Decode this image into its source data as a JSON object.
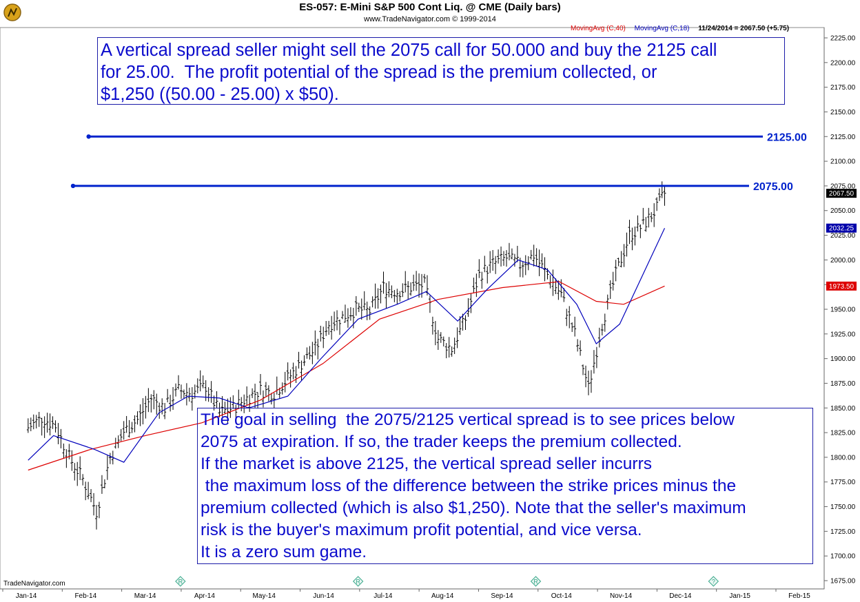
{
  "header": {
    "title": "ES-057:  E-Mini S&P 500 Cont Liq. @ CME  (Daily bars)",
    "subtitle": "www.TradeNavigator.com © 1999-2014",
    "legend": [
      {
        "label": "MovingAvg (C,40)",
        "color": "#dd0000"
      },
      {
        "label": "MovingAvg (C,18)",
        "color": "#0000bb"
      },
      {
        "label": "11/24/2014 = 2067.50 (+5.75)",
        "color": "#000000"
      }
    ]
  },
  "annotations": {
    "top": [
      "A vertical spread seller might sell the 2075 call for 50.000 and buy the 2125 call",
      "for 25.00.  The profit potential of the spread is the premium collected, or",
      "$1,250 ((50.00 - 25.00) x $50)."
    ],
    "bottom": [
      "The goal in selling  the 2075/2125 vertical spread is to see prices below",
      "2075 at expiration. If so, the trader keeps the premium collected.",
      "If the market is above 2125, the vertical spread seller incurrs",
      " the maximum loss of the difference between the strike prices minus the",
      "premium collected (which is also $1,250). Note that the seller's maximum",
      "risk is the buyer's maximum profit potential, and vice versa.",
      "It is a zero sum game."
    ]
  },
  "footer": {
    "brand": "TradeNavigator.com"
  },
  "colors": {
    "price_bars": "#000000",
    "ma40": "#dd0000",
    "ma18": "#0000bb",
    "strike_lines": "#0022cc",
    "annotation_text": "#0b0bcc"
  },
  "chart_data": {
    "type": "line",
    "title": "ES-057:  E-Mini S&P 500 Cont Liq. @ CME  (Daily bars)",
    "x_axis": {
      "type": "date",
      "labels": [
        "Jan-14",
        "Feb-14",
        "Mar-14",
        "Apr-14",
        "May-14",
        "Jun-14",
        "Jul-14",
        "Aug-14",
        "Sep-14",
        "Oct-14",
        "Nov-14",
        "Dec-14",
        "Jan-15",
        "Feb-15"
      ],
      "range": [
        "2014-01-01",
        "2015-02-28"
      ]
    },
    "y_axis": {
      "ylim": [
        1665,
        2235
      ],
      "ticks": [
        1675,
        1700,
        1725,
        1750,
        1775,
        1800,
        1825,
        1850,
        1875,
        1900,
        1925,
        1950,
        1975,
        2000,
        2025,
        2050,
        2075,
        2100,
        2125,
        2150,
        2175,
        2200,
        2225
      ],
      "tick_labels": [
        "1675.00",
        "1700.00",
        "1725.00",
        "1750.00",
        "1775.00",
        "1800.00",
        "1825.00",
        "1850.00",
        "1875.00",
        "1900.00",
        "1925.00",
        "1950.00",
        "1975.00",
        "2000.00",
        "2025.00",
        "2050.00",
        "2075.00",
        "2100.00",
        "2125.00",
        "2150.00",
        "2175.00",
        "2200.00",
        "2225.00"
      ],
      "position": "right"
    },
    "price_bars": {
      "dates": [
        "2014-01-02",
        "2014-01-09",
        "2014-01-16",
        "2014-01-23",
        "2014-01-30",
        "2014-02-06",
        "2014-02-13",
        "2014-02-20",
        "2014-02-27",
        "2014-03-06",
        "2014-03-13",
        "2014-03-20",
        "2014-03-27",
        "2014-04-03",
        "2014-04-10",
        "2014-04-17",
        "2014-04-24",
        "2014-05-01",
        "2014-05-08",
        "2014-05-15",
        "2014-05-22",
        "2014-05-29",
        "2014-06-05",
        "2014-06-12",
        "2014-06-19",
        "2014-06-26",
        "2014-07-03",
        "2014-07-10",
        "2014-07-17",
        "2014-07-24",
        "2014-07-31",
        "2014-08-07",
        "2014-08-14",
        "2014-08-21",
        "2014-08-28",
        "2014-09-04",
        "2014-09-11",
        "2014-09-18",
        "2014-09-25",
        "2014-10-02",
        "2014-10-09",
        "2014-10-16",
        "2014-10-23",
        "2014-10-30",
        "2014-11-06",
        "2014-11-13",
        "2014-11-20",
        "2014-11-24"
      ],
      "close": [
        1830,
        1840,
        1832,
        1800,
        1778,
        1745,
        1800,
        1826,
        1838,
        1860,
        1850,
        1868,
        1865,
        1872,
        1845,
        1850,
        1860,
        1868,
        1865,
        1880,
        1895,
        1910,
        1935,
        1942,
        1950,
        1948,
        1972,
        1968,
        1972,
        1975,
        1920,
        1910,
        1940,
        1985,
        1996,
        2002,
        1995,
        2005,
        1985,
        1965,
        1925,
        1870,
        1935,
        1985,
        2025,
        2035,
        2052,
        2067.5
      ]
    },
    "series": [
      {
        "name": "MovingAvg (C,40)",
        "color": "#dd0000",
        "x": [
          "2014-01-02",
          "2014-02-03",
          "2014-03-03",
          "2014-04-01",
          "2014-05-01",
          "2014-06-02",
          "2014-07-01",
          "2014-07-31",
          "2014-09-02",
          "2014-10-01",
          "2014-10-20",
          "2014-11-03",
          "2014-11-24"
        ],
        "values": [
          1787,
          1808,
          1822,
          1835,
          1858,
          1895,
          1940,
          1960,
          1972,
          1978,
          1958,
          1955,
          1973.5
        ]
      },
      {
        "name": "MovingAvg (C,18)",
        "color": "#0000bb",
        "x": [
          "2014-01-02",
          "2014-01-15",
          "2014-02-05",
          "2014-02-20",
          "2014-03-10",
          "2014-03-25",
          "2014-04-10",
          "2014-04-25",
          "2014-05-15",
          "2014-06-01",
          "2014-06-20",
          "2014-07-10",
          "2014-07-25",
          "2014-08-10",
          "2014-08-25",
          "2014-09-10",
          "2014-09-25",
          "2014-10-10",
          "2014-10-20",
          "2014-11-01",
          "2014-11-24"
        ],
        "values": [
          1797,
          1822,
          1808,
          1795,
          1845,
          1862,
          1860,
          1850,
          1862,
          1900,
          1940,
          1955,
          1968,
          1938,
          1970,
          2000,
          1990,
          1955,
          1915,
          1935,
          2032.25
        ]
      }
    ],
    "strike_lines": [
      {
        "value": 2125,
        "label": "2125.00",
        "start_date": "2014-02-02"
      },
      {
        "value": 2075,
        "label": "2075.00",
        "start_date": "2014-01-25"
      }
    ],
    "right_tags": [
      {
        "value": 2067.5,
        "label": "2067.50",
        "bg": "#000000"
      },
      {
        "value": 2032.25,
        "label": "2032.25",
        "bg": "#0000aa"
      },
      {
        "value": 1973.5,
        "label": "1973.50",
        "bg": "#dd0000"
      }
    ],
    "event_markers": [
      {
        "date": "2014-03-21",
        "symbol": "R"
      },
      {
        "date": "2014-06-20",
        "symbol": "R"
      },
      {
        "date": "2014-09-19",
        "symbol": "R"
      },
      {
        "date": "2014-12-19",
        "symbol": "?"
      }
    ]
  }
}
